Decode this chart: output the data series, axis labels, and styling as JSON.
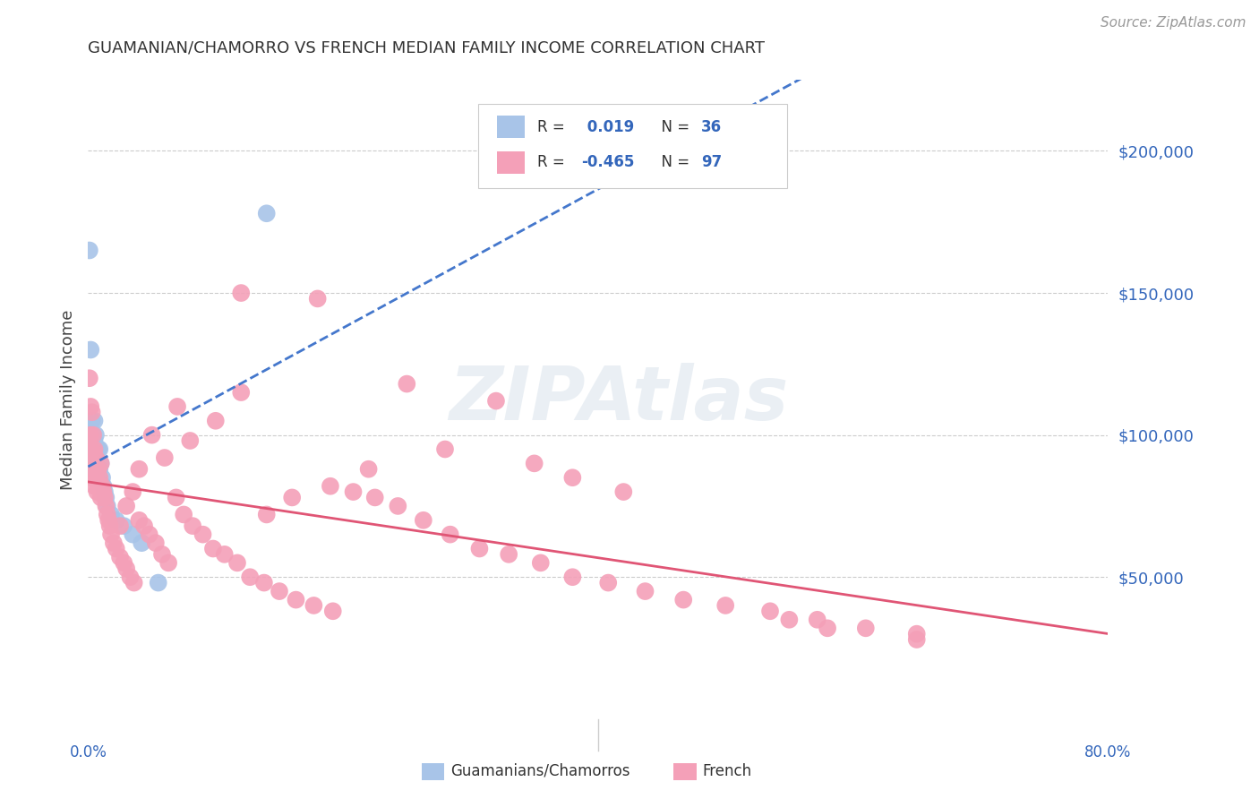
{
  "title": "GUAMANIAN/CHAMORRO VS FRENCH MEDIAN FAMILY INCOME CORRELATION CHART",
  "source": "Source: ZipAtlas.com",
  "ylabel": "Median Family Income",
  "ymin": 0,
  "ymax": 225000,
  "xmin": 0.0,
  "xmax": 0.8,
  "watermark": "ZIPAtlas",
  "right_yticks": [
    50000,
    100000,
    150000,
    200000
  ],
  "right_ytick_labels": [
    "$50,000",
    "$100,000",
    "$150,000",
    "$200,000"
  ],
  "axis_color": "#3366bb",
  "dot_blue": "#a8c4e8",
  "dot_pink": "#f4a0b8",
  "line_blue": "#4477cc",
  "line_pink": "#e05575",
  "grid_color": "#cccccc",
  "title_color": "#333333",
  "source_color": "#999999",
  "legend_R1": "0.019",
  "legend_N1": "36",
  "legend_R2": "-0.465",
  "legend_N2": "97",
  "legend_label1": "Guamanians/Chamorros",
  "legend_label2": "French",
  "gua_x": [
    0.001,
    0.001,
    0.002,
    0.002,
    0.003,
    0.003,
    0.003,
    0.004,
    0.004,
    0.004,
    0.005,
    0.005,
    0.005,
    0.005,
    0.006,
    0.006,
    0.006,
    0.007,
    0.007,
    0.008,
    0.008,
    0.009,
    0.009,
    0.01,
    0.011,
    0.012,
    0.013,
    0.014,
    0.015,
    0.018,
    0.022,
    0.028,
    0.035,
    0.042,
    0.055,
    0.14
  ],
  "gua_y": [
    165000,
    100000,
    130000,
    95000,
    92000,
    88000,
    105000,
    100000,
    95000,
    90000,
    105000,
    98000,
    93000,
    88000,
    100000,
    95000,
    90000,
    95000,
    88000,
    95000,
    85000,
    95000,
    88000,
    90000,
    85000,
    82000,
    80000,
    78000,
    75000,
    72000,
    70000,
    68000,
    65000,
    62000,
    48000,
    178000
  ],
  "fre_x": [
    0.001,
    0.001,
    0.002,
    0.002,
    0.003,
    0.003,
    0.003,
    0.004,
    0.004,
    0.005,
    0.005,
    0.005,
    0.006,
    0.006,
    0.007,
    0.007,
    0.008,
    0.008,
    0.009,
    0.01,
    0.01,
    0.011,
    0.012,
    0.013,
    0.014,
    0.015,
    0.016,
    0.017,
    0.018,
    0.02,
    0.022,
    0.025,
    0.028,
    0.03,
    0.033,
    0.036,
    0.04,
    0.044,
    0.048,
    0.053,
    0.058,
    0.063,
    0.069,
    0.075,
    0.082,
    0.09,
    0.098,
    0.107,
    0.117,
    0.127,
    0.138,
    0.15,
    0.163,
    0.177,
    0.192,
    0.208,
    0.225,
    0.243,
    0.263,
    0.284,
    0.307,
    0.33,
    0.355,
    0.38,
    0.408,
    0.437,
    0.467,
    0.5,
    0.535,
    0.572,
    0.61,
    0.65,
    0.35,
    0.38,
    0.42,
    0.28,
    0.22,
    0.19,
    0.16,
    0.14,
    0.12,
    0.1,
    0.08,
    0.07,
    0.06,
    0.05,
    0.04,
    0.035,
    0.03,
    0.025,
    0.12,
    0.18,
    0.25,
    0.32,
    0.58,
    0.55,
    0.65
  ],
  "fre_y": [
    120000,
    95000,
    110000,
    100000,
    108000,
    95000,
    85000,
    100000,
    90000,
    95000,
    88000,
    82000,
    92000,
    85000,
    88000,
    80000,
    88000,
    82000,
    85000,
    90000,
    78000,
    82000,
    80000,
    78000,
    75000,
    72000,
    70000,
    68000,
    65000,
    62000,
    60000,
    57000,
    55000,
    53000,
    50000,
    48000,
    70000,
    68000,
    65000,
    62000,
    58000,
    55000,
    78000,
    72000,
    68000,
    65000,
    60000,
    58000,
    55000,
    50000,
    48000,
    45000,
    42000,
    40000,
    38000,
    80000,
    78000,
    75000,
    70000,
    65000,
    60000,
    58000,
    55000,
    50000,
    48000,
    45000,
    42000,
    40000,
    38000,
    35000,
    32000,
    30000,
    90000,
    85000,
    80000,
    95000,
    88000,
    82000,
    78000,
    72000,
    115000,
    105000,
    98000,
    110000,
    92000,
    100000,
    88000,
    80000,
    75000,
    68000,
    150000,
    148000,
    118000,
    112000,
    32000,
    35000,
    28000
  ]
}
